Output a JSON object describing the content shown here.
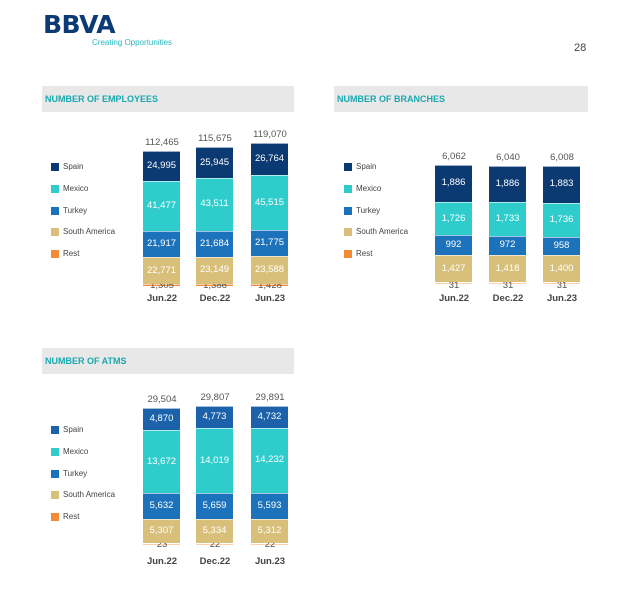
{
  "header": {
    "logo": "BBVA",
    "tagline": "Creating Opportunities",
    "page_number": "28"
  },
  "colors": {
    "Spain": "#0b3a73",
    "Spain_atms": "#1b62ab",
    "Mexico": "#2ecdcc",
    "Turkey": "#1d72bc",
    "South America": "#d8c07a",
    "Rest": "#f28a36"
  },
  "chart_data": [
    {
      "type": "bar",
      "stacked": true,
      "title": "NUMBER OF EMPLOYEES",
      "categories": [
        "Jun.22",
        "Dec.22",
        "Jun.23"
      ],
      "legend": [
        "Spain",
        "Mexico",
        "Turkey",
        "South America",
        "Rest"
      ],
      "legend_position": "left",
      "series": [
        {
          "name": "Spain",
          "values": [
            "24,995",
            "25,945",
            "26,764"
          ]
        },
        {
          "name": "Mexico",
          "values": [
            "41,477",
            "43,511",
            "45,515"
          ]
        },
        {
          "name": "Turkey",
          "values": [
            "21,917",
            "21,684",
            "21,775"
          ]
        },
        {
          "name": "South America",
          "values": [
            "22,771",
            "23,149",
            "23,588"
          ]
        },
        {
          "name": "Rest",
          "values": [
            "1,305",
            "1,386",
            "1,428"
          ]
        }
      ],
      "totals": [
        "112,465",
        "115,675",
        "119,070"
      ]
    },
    {
      "type": "bar",
      "stacked": true,
      "title": "NUMBER OF BRANCHES",
      "categories": [
        "Jun.22",
        "Dec.22",
        "Jun.23"
      ],
      "legend": [
        "Spain",
        "Mexico",
        "Turkey",
        "South America",
        "Rest"
      ],
      "legend_position": "left",
      "series": [
        {
          "name": "Spain",
          "values": [
            "1,886",
            "1,886",
            "1,883"
          ]
        },
        {
          "name": "Mexico",
          "values": [
            "1,726",
            "1,733",
            "1,736"
          ]
        },
        {
          "name": "Turkey",
          "values": [
            "992",
            "972",
            "958"
          ]
        },
        {
          "name": "South America",
          "values": [
            "1,427",
            "1,418",
            "1,400"
          ]
        },
        {
          "name": "Rest",
          "values": [
            "31",
            "31",
            "31"
          ]
        }
      ],
      "totals": [
        "6,062",
        "6,040",
        "6,008"
      ]
    },
    {
      "type": "bar",
      "stacked": true,
      "title": "NUMBER OF ATMS",
      "categories": [
        "Jun.22",
        "Dec.22",
        "Jun.23"
      ],
      "legend": [
        "Spain",
        "Mexico",
        "Turkey",
        "South America",
        "Rest"
      ],
      "legend_position": "left",
      "series": [
        {
          "name": "Spain",
          "values": [
            "4,870",
            "4,773",
            "4,732"
          ]
        },
        {
          "name": "Mexico",
          "values": [
            "13,672",
            "14,019",
            "14,232"
          ]
        },
        {
          "name": "Turkey",
          "values": [
            "5,632",
            "5,659",
            "5,593"
          ]
        },
        {
          "name": "South America",
          "values": [
            "5,307",
            "5,334",
            "5,312"
          ]
        },
        {
          "name": "Rest",
          "values": [
            "23",
            "22",
            "22"
          ]
        }
      ],
      "totals": [
        "29,504",
        "29,807",
        "29,891"
      ]
    }
  ]
}
